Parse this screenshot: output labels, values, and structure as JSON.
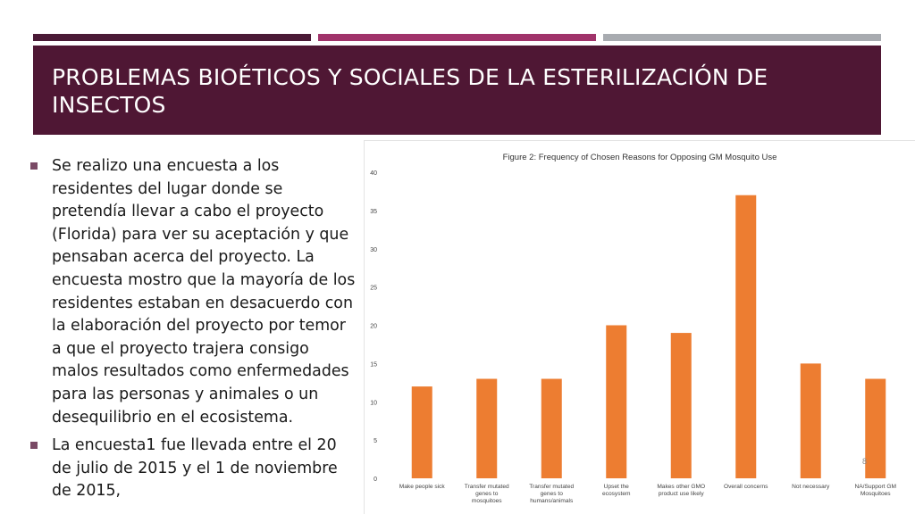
{
  "slide": {
    "title": "PROBLEMAS BIOÉTICOS Y SOCIALES DE LA ESTERILIZACIÓN DE INSECTOS",
    "bullets": [
      "Se realizo una encuesta a los residentes del lugar donde se pretendía llevar a cabo el proyecto (Florida) para ver su aceptación y que pensaban acerca del proyecto. La encuesta mostro que la mayoría de los residentes estaban en desacuerdo con la elaboración del proyecto por temor a que el proyecto trajera consigo malos resultados como enfermedades para las personas y animales o un desequilibrio en el ecosistema.",
      "La encuesta1 fue llevada entre el 20 de julio de 2015 y el 1 de noviembre de 2015,"
    ],
    "page_number": "8",
    "colors": {
      "accent_dark": "#4a1a36",
      "accent_mid": "#a0336a",
      "accent_gray": "#a8abb0",
      "title_bg": "#4f1734",
      "bar_fill": "#ed7d31"
    }
  },
  "chart_data": {
    "type": "bar",
    "title": "Figure 2: Frequency of Chosen Reasons for Opposing GM Mosquito Use",
    "xlabel": "",
    "ylabel": "",
    "ylim": [
      0,
      40
    ],
    "yticks": [
      0,
      5,
      10,
      15,
      20,
      25,
      30,
      35,
      40
    ],
    "grid": false,
    "categories": [
      "Make people sick",
      "Transfer mutated genes to mosquitoes",
      "Transfer mutated genes to humans/animals",
      "Upset the ecosystem",
      "Makes other GMO product use likely",
      "Overall concerns",
      "Not necessary",
      "NA/Support GM Mosquitoes"
    ],
    "values": [
      12,
      13,
      13,
      20,
      19,
      37,
      15,
      13
    ]
  }
}
